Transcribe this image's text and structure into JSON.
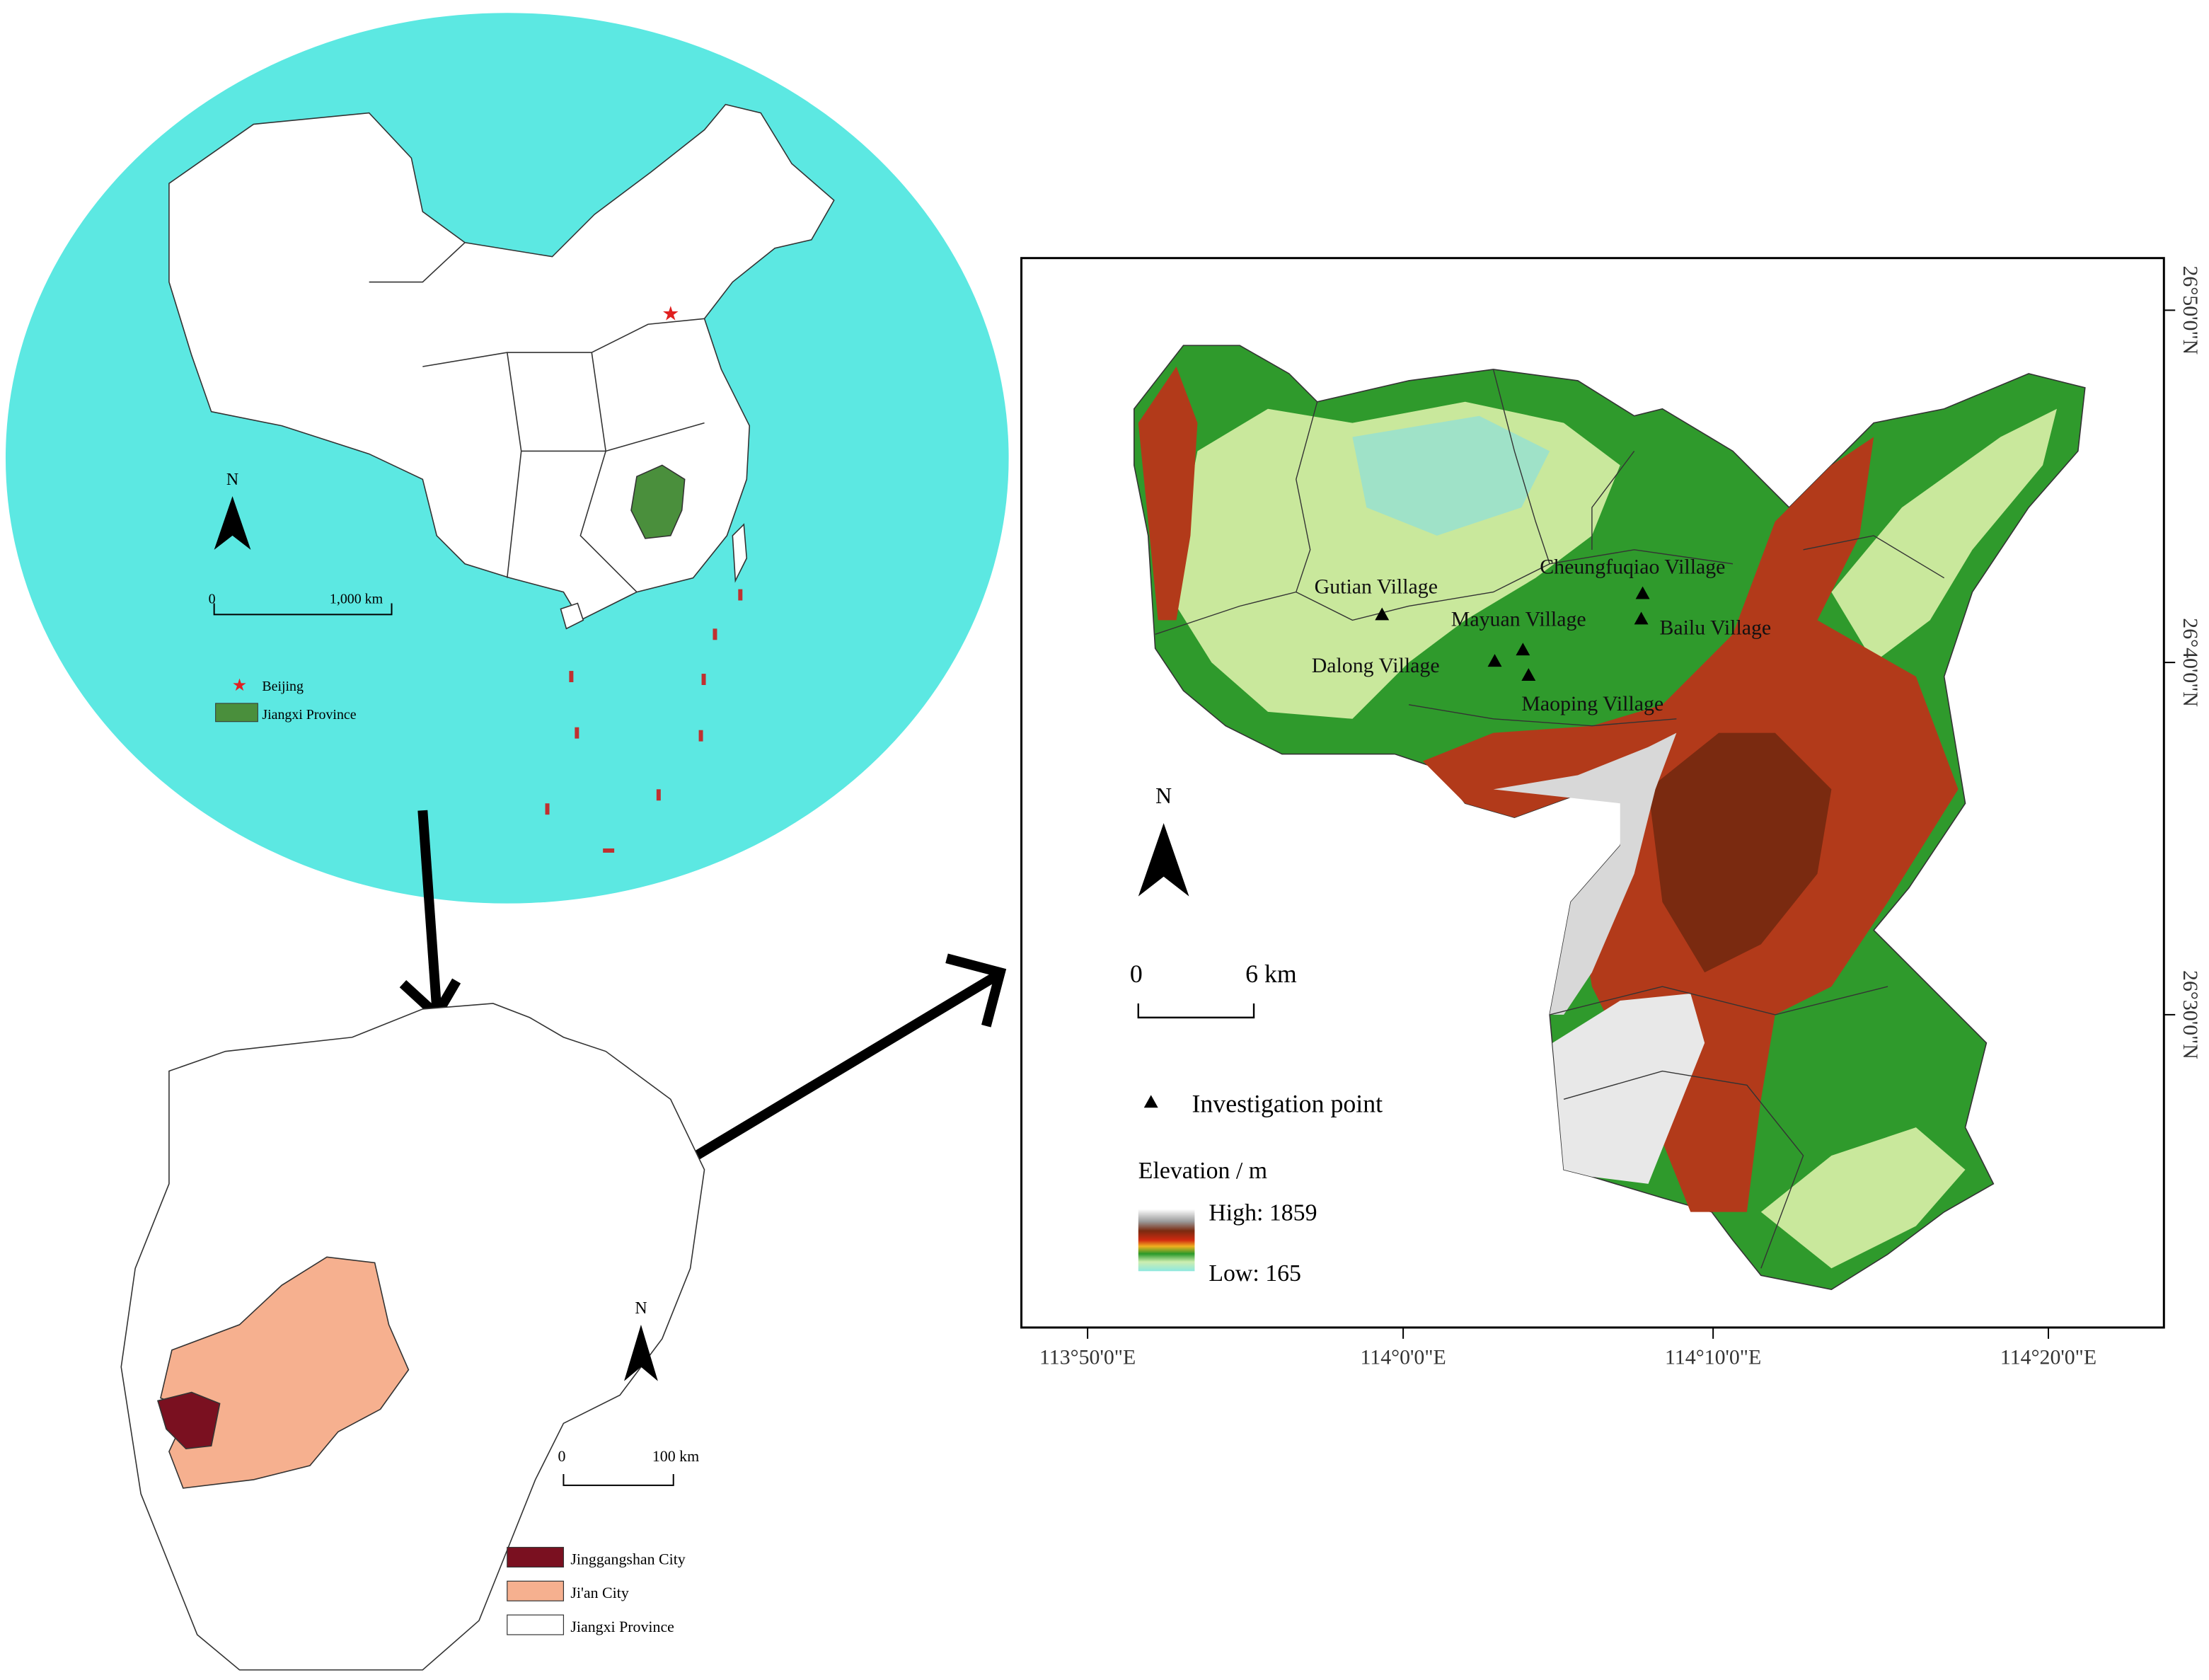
{
  "china_map": {
    "north": "N",
    "scale": [
      "0",
      "1,000 km"
    ],
    "legend": [
      "Beijing",
      "Jiangxi Province"
    ]
  },
  "jiangxi_map": {
    "north": "N",
    "scale": [
      "0",
      "100 km"
    ],
    "legend": [
      "Jinggangshan City",
      "Ji'an City",
      "Jiangxi Province"
    ]
  },
  "study_area_map": {
    "north": "N",
    "scale": [
      "0",
      "6 km"
    ],
    "villages": [
      "Gutian Village",
      "Cheungfuqiao Village",
      "Mayuan Village",
      "Bailu Village",
      "Dalong Village",
      "Maoping Village"
    ],
    "legend": {
      "investigation_point": "Investigation point",
      "elevation_title": "Elevation / m",
      "high": "High: 1859",
      "low": "Low: 165"
    },
    "x_axis_labels": [
      "113°50'0\"E",
      "114°0'0\"E",
      "114°10'0\"E",
      "114°20'0\"E"
    ],
    "y_axis_labels": [
      "26°50'0\"N",
      "26°40'0\"N",
      "26°30'0\"N"
    ]
  }
}
